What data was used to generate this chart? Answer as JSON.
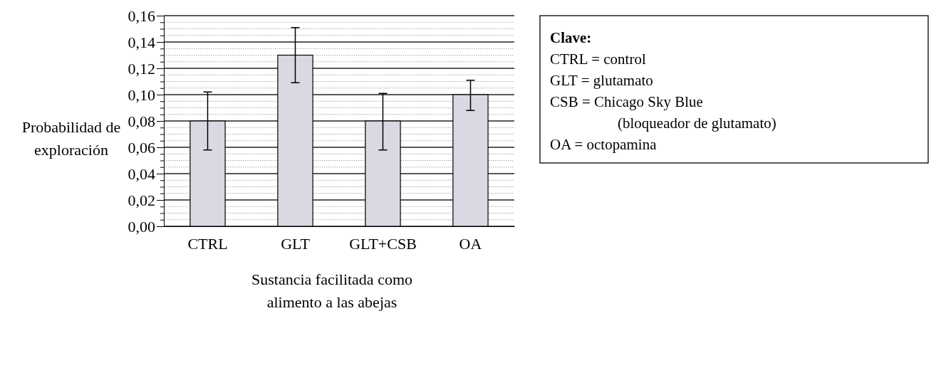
{
  "chart_data": {
    "type": "bar",
    "ylabel": "Probabilidad de exploración",
    "xlabel": "Sustancia facilitada como alimento a las abejas",
    "categories": [
      "CTRL",
      "GLT",
      "GLT+CSB",
      "OA"
    ],
    "values": [
      0.08,
      0.13,
      0.08,
      0.1
    ],
    "errors": [
      [
        0.058,
        0.102
      ],
      [
        0.109,
        0.151
      ],
      [
        0.058,
        0.101
      ],
      [
        0.088,
        0.111
      ]
    ],
    "color": "#d9d9e3",
    "ylim": [
      0,
      0.16
    ],
    "yticks": [
      {
        "value": 0,
        "label": "0,00"
      },
      {
        "value": 0.005,
        "label": null
      },
      {
        "value": 0.01,
        "label": null
      },
      {
        "value": 0.015,
        "label": null
      },
      {
        "value": 0.02,
        "label": "0,02"
      },
      {
        "value": 0.025,
        "label": null
      },
      {
        "value": 0.03,
        "label": null
      },
      {
        "value": 0.035,
        "label": null
      },
      {
        "value": 0.04,
        "label": "0,04"
      },
      {
        "value": 0.045,
        "label": null
      },
      {
        "value": 0.05,
        "label": null
      },
      {
        "value": 0.055,
        "label": null
      },
      {
        "value": 0.06,
        "label": "0,06"
      },
      {
        "value": 0.065,
        "label": null
      },
      {
        "value": 0.07,
        "label": null
      },
      {
        "value": 0.075,
        "label": null
      },
      {
        "value": 0.08,
        "label": "0,08"
      },
      {
        "value": 0.085,
        "label": null
      },
      {
        "value": 0.09,
        "label": null
      },
      {
        "value": 0.095,
        "label": null
      },
      {
        "value": 0.1,
        "label": "0,10"
      },
      {
        "value": 0.105,
        "label": null
      },
      {
        "value": 0.11,
        "label": null
      },
      {
        "value": 0.115,
        "label": null
      },
      {
        "value": 0.12,
        "label": "0,12"
      },
      {
        "value": 0.125,
        "label": null
      },
      {
        "value": 0.13,
        "label": null
      },
      {
        "value": 0.135,
        "label": null
      },
      {
        "value": 0.14,
        "label": "0,14"
      },
      {
        "value": 0.145,
        "label": null
      },
      {
        "value": 0.15,
        "label": null
      },
      {
        "value": 0.155,
        "label": null
      },
      {
        "value": 0.16,
        "label": "0,16"
      }
    ],
    "grid": "y",
    "annotations": [
      "Clave:",
      "CTRL = control",
      "GLT = glutamato",
      "CSB = Chicago Sky Blue",
      "(bloqueador de glutamato)",
      "OA = octopamina"
    ]
  }
}
